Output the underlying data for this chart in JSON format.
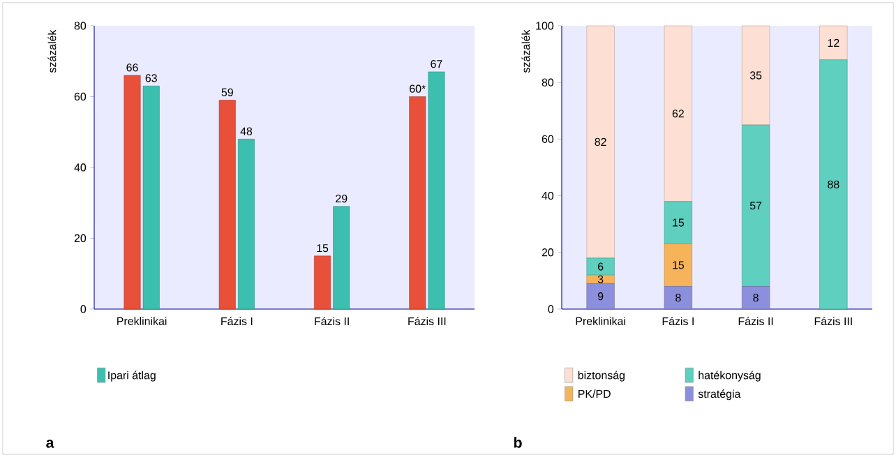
{
  "chart_data": [
    {
      "type": "bar",
      "ylabel": "százalék",
      "categories": [
        "Preklinikai",
        "Fázis I",
        "Fázis II",
        "Fázis III"
      ],
      "series": [
        {
          "color": "#e8503a",
          "values": [
            66,
            59,
            15,
            60
          ],
          "value_labels": [
            "66",
            "59",
            "15",
            "60*"
          ]
        },
        {
          "name": "Ipari átlag",
          "color": "#3dbfb0",
          "values": [
            63,
            48,
            29,
            67
          ],
          "value_labels": [
            "63",
            "48",
            "29",
            "67"
          ]
        }
      ],
      "ylim": [
        0,
        80
      ],
      "yticks": [
        0,
        20,
        40,
        60,
        80
      ],
      "legend": "bottom left",
      "annotations": [
        "a"
      ]
    },
    {
      "type": "bar",
      "stacked": true,
      "ylabel": "százalék",
      "categories": [
        "Preklinikai",
        "Fázis I",
        "Fázis II",
        "Fázis III"
      ],
      "series": [
        {
          "name": "stratégia",
          "color": "#8c8fdb",
          "values": [
            9,
            8,
            8,
            0
          ],
          "value_labels": [
            "9",
            "8",
            "8",
            null
          ]
        },
        {
          "name": "PK/PD",
          "color": "#f7b35a",
          "values": [
            3,
            15,
            0,
            0
          ],
          "value_labels": [
            "3",
            "15",
            null,
            null
          ]
        },
        {
          "name": "hatékonyság",
          "color": "#5fcfbf",
          "values": [
            6,
            15,
            57,
            88
          ],
          "value_labels": [
            "6",
            "15",
            "57",
            "88"
          ]
        },
        {
          "name": "biztonság",
          "color": "#fde0d3",
          "values": [
            82,
            62,
            35,
            12
          ],
          "value_labels": [
            "82",
            "62",
            "35",
            "12"
          ]
        }
      ],
      "ylim": [
        0,
        100
      ],
      "yticks": [
        0,
        20,
        40,
        60,
        80,
        100
      ],
      "legend": "bottom left",
      "annotations": [
        "b"
      ]
    }
  ]
}
